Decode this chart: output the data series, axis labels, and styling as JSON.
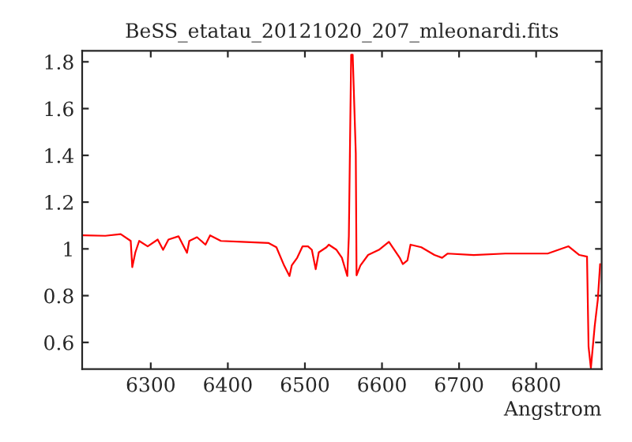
{
  "chart_data": {
    "type": "line",
    "title": "BeSS_etatau_20121020_207_mleonardi.fits",
    "xlabel": "Angstrom",
    "xlim": [
      6211,
      6885
    ],
    "ylim": [
      0.486,
      1.847
    ],
    "xticks": [
      6300,
      6400,
      6500,
      6600,
      6700,
      6800
    ],
    "yticks": [
      0.6,
      0.8,
      1,
      1.2,
      1.4,
      1.6,
      1.8
    ],
    "grid": false,
    "legend": false,
    "marker": "none",
    "line_style": "solid",
    "series": [
      {
        "color": "#ff0000",
        "x": [
          6212,
          6241,
          6261,
          6274,
          6276,
          6280,
          6285,
          6296,
          6309,
          6316,
          6323,
          6336,
          6347,
          6350,
          6360,
          6371,
          6377,
          6391,
          6418,
          6453,
          6463,
          6473,
          6480,
          6483,
          6490,
          6497,
          6504,
          6509,
          6514,
          6518,
          6528,
          6531,
          6541,
          6548,
          6555,
          6557,
          6560,
          6562,
          6566,
          6567,
          6572,
          6582,
          6596,
          6609,
          6623,
          6627,
          6633,
          6637,
          6651,
          6668,
          6678,
          6685,
          6719,
          6760,
          6815,
          6842,
          6856,
          6866,
          6868,
          6871,
          6876,
          6880,
          6883
        ],
        "values": [
          1.058,
          1.056,
          1.063,
          1.034,
          0.922,
          0.985,
          1.034,
          1.011,
          1.04,
          0.996,
          1.04,
          1.054,
          0.983,
          1.034,
          1.05,
          1.018,
          1.058,
          1.034,
          1.03,
          1.025,
          1.007,
          0.929,
          0.884,
          0.93,
          0.962,
          1.011,
          1.011,
          0.996,
          0.913,
          0.985,
          1.007,
          1.018,
          0.996,
          0.962,
          0.884,
          1.054,
          1.83,
          1.83,
          1.41,
          0.887,
          0.929,
          0.974,
          0.996,
          1.03,
          0.962,
          0.935,
          0.951,
          1.018,
          1.007,
          0.974,
          0.962,
          0.98,
          0.974,
          0.98,
          0.98,
          1.011,
          0.974,
          0.967,
          0.582,
          0.49,
          0.671,
          0.783,
          0.935
        ]
      }
    ]
  }
}
